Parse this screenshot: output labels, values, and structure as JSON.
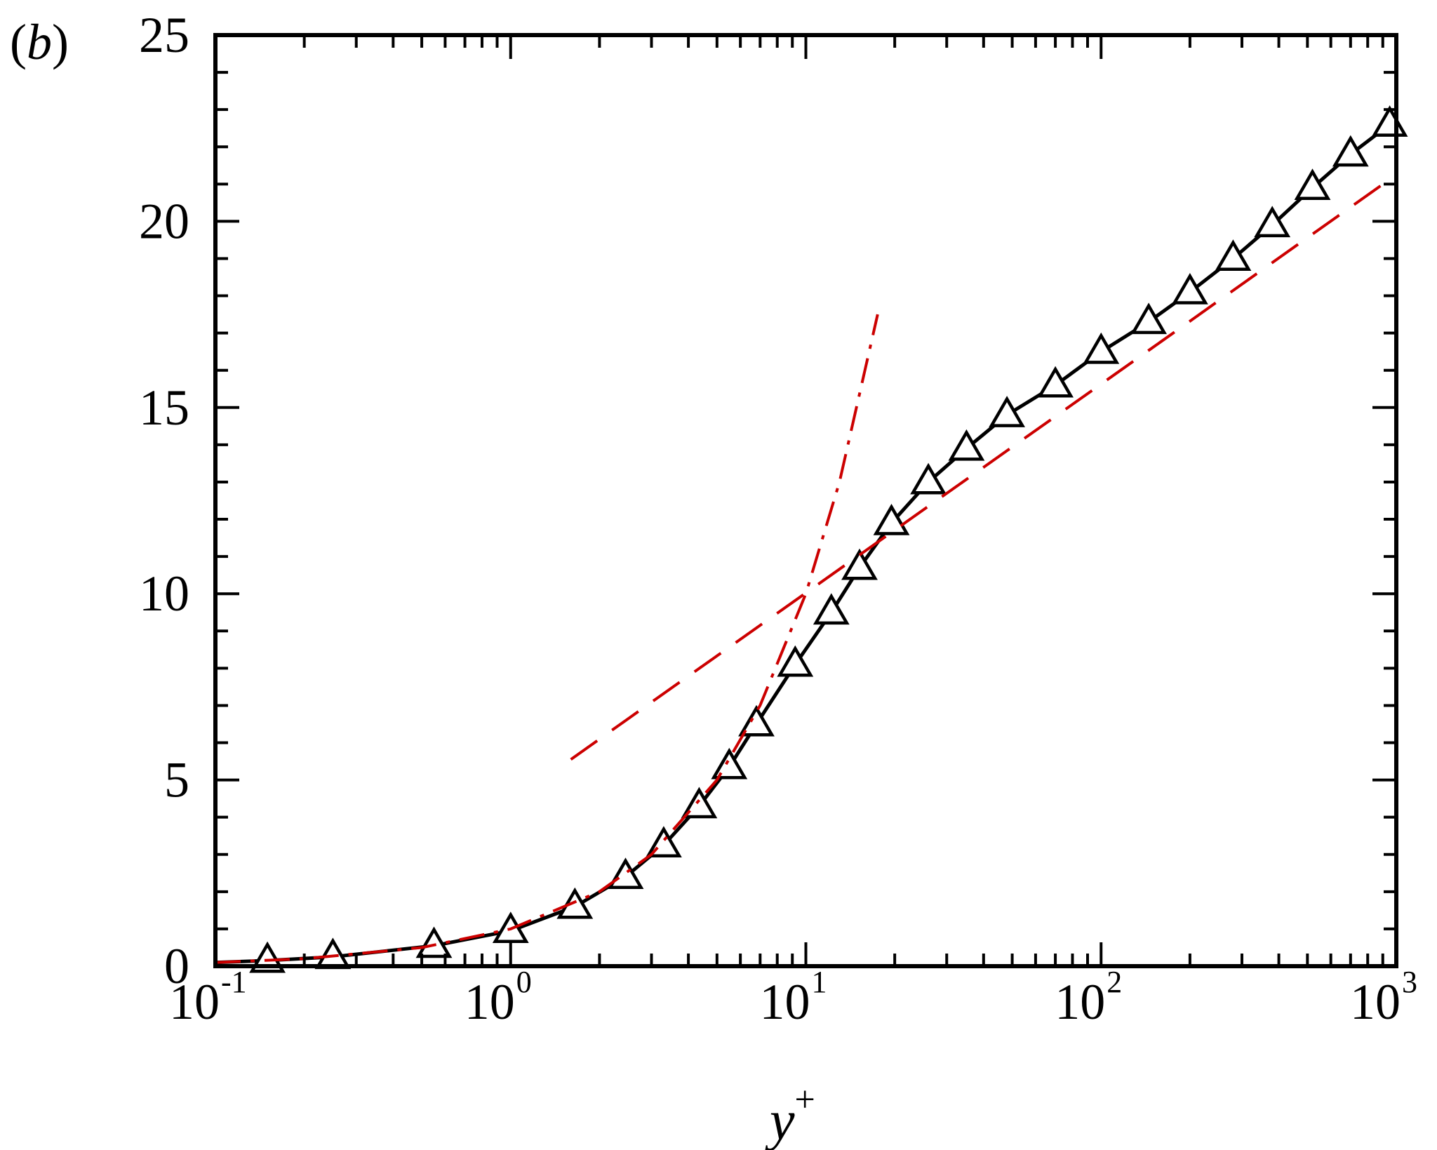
{
  "panel_label": {
    "open": "(",
    "letter": "b",
    "close": ")"
  },
  "chart_data": {
    "type": "line",
    "xscale": "log",
    "xlim": [
      0.1,
      1000
    ],
    "ylim": [
      0,
      25
    ],
    "title": "",
    "xlabel": {
      "base": "y",
      "sup": "+"
    },
    "ylabel": "",
    "grid": false,
    "x_ticks": [
      {
        "x": 0.1,
        "base": "10",
        "exp": "-1"
      },
      {
        "x": 1,
        "base": "10",
        "exp": "0"
      },
      {
        "x": 10,
        "base": "10",
        "exp": "1"
      },
      {
        "x": 100,
        "base": "10",
        "exp": "2"
      },
      {
        "x": 1000,
        "base": "10",
        "exp": "3"
      }
    ],
    "y_ticks": [
      {
        "y": 0,
        "label": "0"
      },
      {
        "y": 5,
        "label": "5"
      },
      {
        "y": 10,
        "label": "10"
      },
      {
        "y": 15,
        "label": "15"
      },
      {
        "y": 20,
        "label": "20"
      },
      {
        "y": 25,
        "label": "25"
      }
    ],
    "series": [
      {
        "style": "solid",
        "color": "#000000",
        "marker": "triangle-open",
        "x": [
          0.1,
          0.15,
          0.25,
          0.55,
          1.0,
          1.65,
          2.45,
          3.3,
          4.35,
          5.5,
          6.8,
          9.2,
          12.2,
          15.2,
          19.5,
          26.0,
          35.0,
          48.0,
          70.0,
          100.0,
          145.0,
          200.0,
          280.0,
          380.0,
          520.0,
          700.0,
          950.0
        ],
        "y": [
          0.1,
          0.15,
          0.25,
          0.55,
          0.95,
          1.6,
          2.4,
          3.25,
          4.3,
          5.35,
          6.5,
          8.1,
          9.5,
          10.7,
          11.9,
          13.0,
          13.9,
          14.8,
          15.6,
          16.5,
          17.3,
          18.1,
          19.0,
          19.9,
          20.9,
          21.8,
          22.6
        ],
        "marker_x": [
          0.15,
          0.25,
          0.55,
          1.0,
          1.65,
          2.45,
          3.3,
          4.35,
          5.5,
          6.8,
          9.2,
          12.2,
          15.2,
          19.5,
          26.0,
          35.0,
          48.0,
          70.0,
          100.0,
          145.0,
          200.0,
          280.0,
          380.0,
          520.0,
          700.0,
          950.0
        ],
        "marker_y": [
          0.15,
          0.25,
          0.55,
          0.95,
          1.6,
          2.4,
          3.25,
          4.3,
          5.35,
          6.5,
          8.1,
          9.5,
          10.7,
          11.9,
          13.0,
          13.9,
          14.8,
          15.6,
          16.5,
          17.3,
          18.1,
          19.0,
          19.9,
          20.9,
          21.8,
          22.6
        ]
      },
      {
        "style": "dash-dot",
        "color": "#cc0000",
        "x": [
          0.1,
          0.2,
          0.5,
          1,
          2,
          3,
          5,
          7,
          10,
          13,
          17.5
        ],
        "y": [
          0.1,
          0.2,
          0.5,
          1,
          2,
          3,
          5,
          7,
          10,
          13,
          17.5
        ]
      },
      {
        "style": "dashed",
        "color": "#cc0000",
        "x": [
          1.6,
          3,
          5,
          10,
          20,
          50,
          100,
          200,
          500,
          1000
        ],
        "y": [
          5.55,
          7.09,
          8.33,
          10.02,
          11.71,
          13.94,
          15.63,
          17.32,
          19.56,
          21.25
        ]
      }
    ]
  }
}
